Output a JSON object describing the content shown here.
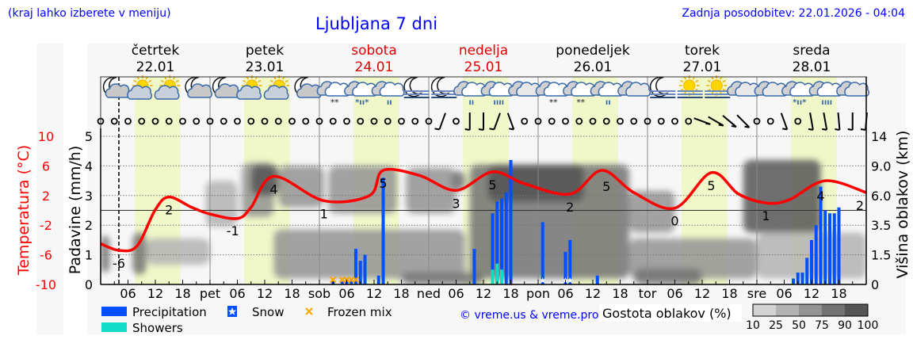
{
  "header": {
    "location_hint": "(kraj lahko izberete v meniju)",
    "title": "Ljubljana 7 dni",
    "updated": "Zadnja posodobitev: 22.01.2026 - 04:04"
  },
  "days": [
    {
      "name": "četrtek",
      "date": "22.01",
      "weekend": false
    },
    {
      "name": "petek",
      "date": "23.01",
      "weekend": false
    },
    {
      "name": "sobota",
      "date": "24.01",
      "weekend": true
    },
    {
      "name": "nedelja",
      "date": "25.01",
      "weekend": true
    },
    {
      "name": "ponedeljek",
      "date": "26.01",
      "weekend": false
    },
    {
      "name": "torek",
      "date": "27.01",
      "weekend": false
    },
    {
      "name": "sreda",
      "date": "28.01",
      "weekend": false
    }
  ],
  "colors": {
    "precipitation": "#0050ff",
    "showers": "#10dcc8",
    "frozen_mix": "#ffa500",
    "temperature": "#ff0000",
    "daylight": "#f0f7c8",
    "title": "#0000ff"
  },
  "chart_data": {
    "type": "meteogram",
    "grid": true,
    "now_marker": "22.01 04:00",
    "x_ticks": {
      "hours": [
        "06",
        "12",
        "18"
      ],
      "midnights": [
        "",
        "pet",
        "sob",
        "ned",
        "pon",
        "tor",
        "sre"
      ]
    },
    "left_axis": {
      "label": "Padavine (mm/h)",
      "ticks": [
        "0",
        "1",
        "2",
        "3",
        "4",
        "5"
      ],
      "range": [
        0,
        5
      ]
    },
    "temp_axis": {
      "label": "Temperatura (°C)",
      "ticks": [
        "-10",
        "-6",
        "-2",
        "2",
        "6",
        "10"
      ],
      "range": [
        -10,
        10
      ]
    },
    "right_axis": {
      "label": "Višina oblakov (km)",
      "ticks": [
        "0",
        "1.5",
        "3.5",
        "6.0",
        "9.0",
        "14"
      ]
    },
    "temperature": [
      [
        "22.01 00:00",
        -4.5
      ],
      [
        "22.01 04:00",
        -5.4
      ],
      [
        "22.01 08:00",
        -4.8
      ],
      [
        "22.01 12:00",
        0.1
      ],
      [
        "22.01 15:00",
        1.8
      ],
      [
        "22.01 20:00",
        0.4
      ],
      [
        "23.01 00:00",
        -0.5
      ],
      [
        "23.01 06:00",
        -1.1
      ],
      [
        "23.01 09:00",
        0.4
      ],
      [
        "23.01 14:00",
        4.6
      ],
      [
        "24.01 01:00",
        1.3
      ],
      [
        "24.01 11:00",
        2.0
      ],
      [
        "24.01 14:00",
        5.4
      ],
      [
        "24.01 22:00",
        4.7
      ],
      [
        "25.01 06:00",
        2.7
      ],
      [
        "25.01 14:00",
        5.2
      ],
      [
        "25.01 21:00",
        3.6
      ],
      [
        "26.01 07:00",
        2.2
      ],
      [
        "26.01 14:00",
        5.4
      ],
      [
        "26.01 21:00",
        2.4
      ],
      [
        "27.01 06:00",
        0.3
      ],
      [
        "27.01 14:00",
        5.1
      ],
      [
        "27.01 20:00",
        2.2
      ],
      [
        "28.01 02:00",
        1.0
      ],
      [
        "28.01 07:00",
        1.4
      ],
      [
        "28.01 15:00",
        4.0
      ],
      [
        "29.01 00:00",
        2.4
      ]
    ],
    "temp_labels": [
      [
        "22.01 04:00",
        "-6"
      ],
      [
        "22.01 15:00",
        "2"
      ],
      [
        "23.01 05:00",
        "-1"
      ],
      [
        "23.01 14:00",
        "4"
      ],
      [
        "24.01 01:00",
        "1"
      ],
      [
        "24.01 14:00",
        "5"
      ],
      [
        "25.01 06:00",
        "3"
      ],
      [
        "25.01 14:00",
        "5"
      ],
      [
        "26.01 07:00",
        "2"
      ],
      [
        "26.01 15:00",
        "5"
      ],
      [
        "27.01 06:00",
        "0"
      ],
      [
        "27.01 14:00",
        "5"
      ],
      [
        "28.01 02:00",
        "1"
      ],
      [
        "28.01 14:00",
        "4"
      ],
      [
        "29.01 00:00",
        "2"
      ]
    ],
    "precipitation": [
      [
        "24.01 03:00",
        0.1
      ],
      [
        "24.01 05:00",
        0.1
      ],
      [
        "24.01 06:00",
        0.2
      ],
      [
        "24.01 07:00",
        0.2
      ],
      [
        "24.01 08:00",
        1.2
      ],
      [
        "24.01 09:00",
        0.8
      ],
      [
        "24.01 10:00",
        1.0
      ],
      [
        "24.01 13:00",
        0.3
      ],
      [
        "24.01 14:00",
        3.6
      ],
      [
        "25.01 10:00",
        1.2
      ],
      [
        "25.01 14:00",
        2.4
      ],
      [
        "25.01 15:00",
        2.8
      ],
      [
        "25.01 16:00",
        2.9
      ],
      [
        "25.01 17:00",
        3.1
      ],
      [
        "25.01 18:00",
        4.2
      ],
      [
        "26.01 01:00",
        2.1
      ],
      [
        "26.01 06:00",
        1.1
      ],
      [
        "26.01 07:00",
        1.5
      ],
      [
        "26.01 13:00",
        0.3
      ],
      [
        "28.01 08:00",
        0.2
      ],
      [
        "28.01 09:00",
        0.4
      ],
      [
        "28.01 10:00",
        0.4
      ],
      [
        "28.01 11:00",
        0.9
      ],
      [
        "28.01 12:00",
        1.5
      ],
      [
        "28.01 13:00",
        2.0
      ],
      [
        "28.01 14:00",
        3.3
      ],
      [
        "28.01 15:00",
        2.5
      ],
      [
        "28.01 16:00",
        2.4
      ],
      [
        "28.01 17:00",
        2.4
      ],
      [
        "28.01 18:00",
        2.6
      ]
    ],
    "showers": [
      [
        "25.01 14:00",
        0.5
      ],
      [
        "25.01 15:00",
        0.7
      ],
      [
        "25.01 16:00",
        0.5
      ]
    ],
    "snow": [
      "26.01 01:00",
      "26.01 06:00",
      "26.01 07:00"
    ],
    "frozen_mix": [
      "24.01 03:00",
      "24.01 05:00",
      "24.01 06:00",
      "24.01 07:00",
      "24.01 08:00"
    ],
    "cloud_density": [
      [
        "22.01 00:00",
        "22.01 02:00",
        0.6,
        2.8,
        75
      ],
      [
        "22.01 07:00",
        "22.01 10:00",
        0.5,
        3.0,
        75
      ],
      [
        "22.01 10:00",
        "23.01 00:00",
        1.0,
        2.6,
        25
      ],
      [
        "22.01 23:00",
        "23.01 06:00",
        3.4,
        7.5,
        25
      ],
      [
        "23.01 07:00",
        "23.01 14:00",
        4.2,
        9.5,
        50
      ],
      [
        "23.01 09:00",
        "23.01 15:00",
        6.0,
        9.2,
        90
      ],
      [
        "23.01 15:00",
        "24.01 01:00",
        5.0,
        9.0,
        50
      ],
      [
        "23.01 14:00",
        "25.01 08:00",
        0.3,
        3.2,
        50
      ],
      [
        "24.01 02:00",
        "24.01 17:00",
        4.5,
        9.0,
        50
      ],
      [
        "24.01 19:00",
        "25.01 06:00",
        4.5,
        8.8,
        50
      ],
      [
        "25.01 05:00",
        "25.01 08:00",
        6.5,
        8.5,
        75
      ],
      [
        "25.01 09:00",
        "26.01 20:00",
        0.3,
        9.2,
        75
      ],
      [
        "25.01 13:00",
        "26.01 10:00",
        5.5,
        9.2,
        90
      ],
      [
        "26.01 20:00",
        "27.01 06:00",
        3.0,
        6.5,
        50
      ],
      [
        "26.01 20:00",
        "28.01 00:00",
        0.3,
        2.6,
        50
      ],
      [
        "27.01 21:00",
        "28.01 14:00",
        3.0,
        10.0,
        90
      ],
      [
        "28.01 00:00",
        "29.01 00:00",
        0.3,
        3.0,
        25
      ],
      [
        "24.01 18:00",
        "25.01 12:00",
        0.0,
        0.6,
        75
      ],
      [
        "26.01 21:00",
        "27.01 12:00",
        0.0,
        0.8,
        75
      ]
    ],
    "weather_icons": [
      "moon-cloud",
      "sun-cloud",
      "sun-cloud",
      "moon-cloud",
      "moon-cloud",
      "sun-cloud",
      "sun-cloud",
      "moon-cloud",
      "cloud-snow",
      "cloud-sleet",
      "cloud-rain",
      "moon-fog",
      "moon-fog",
      "cloud-rain",
      "cloud-heavy-rain",
      "overcast",
      "cloud-snow",
      "cloud-snow",
      "cloud-rain",
      "overcast",
      "moon-fog",
      "sun-fog",
      "sun-fog",
      "overcast",
      "overcast",
      "cloud-sleet",
      "cloud-heavy-rain",
      "overcast"
    ],
    "wind": {
      "calm": "circle",
      "barbs": [
        [
          25,
          160
        ],
        [
          27,
          180
        ],
        [
          28,
          180
        ],
        [
          29,
          160
        ],
        [
          30,
          200
        ],
        [
          44,
          250
        ],
        [
          45,
          240
        ],
        [
          46,
          230
        ],
        [
          47,
          225
        ],
        [
          50,
          200
        ],
        [
          52,
          190
        ],
        [
          53,
          190
        ],
        [
          54,
          185
        ],
        [
          55,
          180
        ],
        [
          56,
          175
        ]
      ]
    }
  },
  "legend": {
    "precipitation": "Precipitation",
    "snow": "Snow",
    "frozen_mix": "Frozen mix",
    "showers": "Showers",
    "credit": "© vreme.us & vreme.pro",
    "cloud_title": "Gostota oblakov (%)",
    "cloud_levels": [
      "10",
      "25",
      "50",
      "75",
      "90",
      "100"
    ],
    "cloud_colors": [
      "#d3d3d3",
      "#b3b3b3",
      "#939393",
      "#737373",
      "#555555"
    ]
  }
}
